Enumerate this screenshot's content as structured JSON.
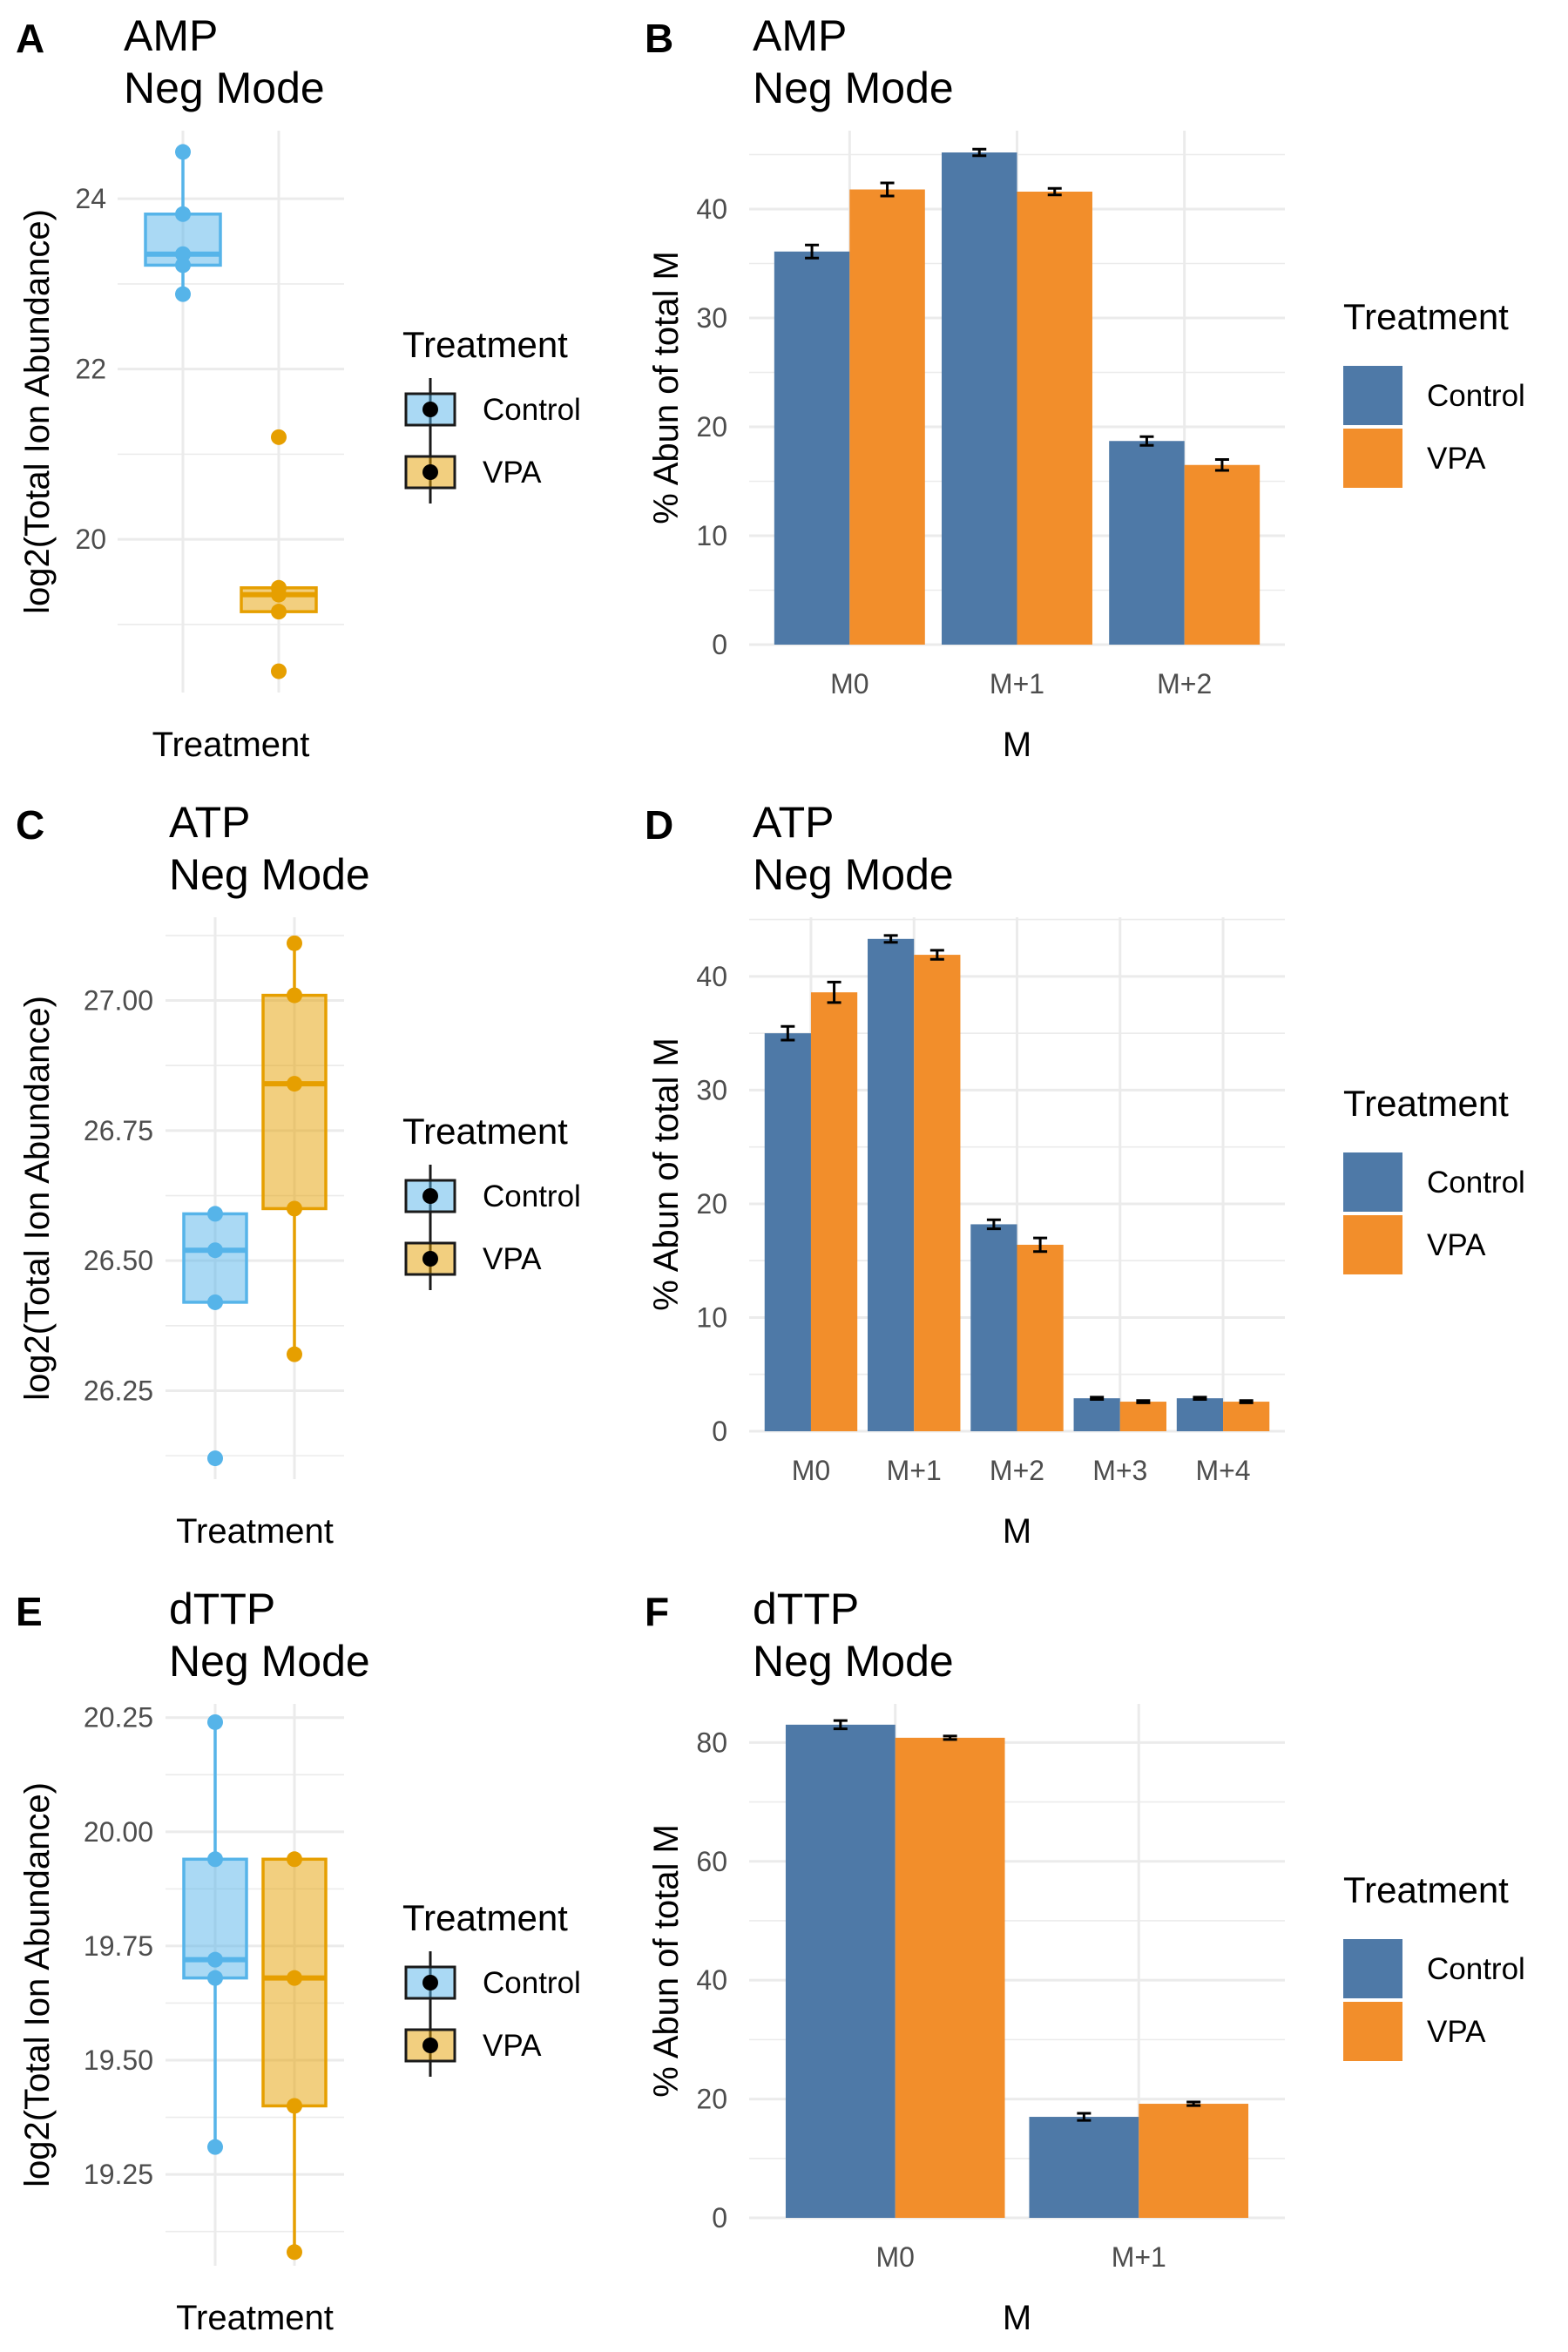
{
  "colors": {
    "box_control": "#56B4E9",
    "box_vpa": "#E69F00",
    "bar_control": "#4E79A7",
    "bar_vpa": "#F28E2B",
    "grid": "#EBEBEB"
  },
  "chart_data": [
    {
      "letter": "A",
      "type": "box",
      "title": "AMP",
      "subtitle": "Neg Mode",
      "xlabel": "Treatment",
      "ylabel": "log2(Total Ion Abundance)",
      "ylim": [
        18.2,
        24.8
      ],
      "yticks": [
        20,
        22,
        24
      ],
      "ytick_labels": [
        "20",
        "22",
        "24"
      ],
      "legend_title": "Treatment",
      "series": [
        {
          "name": "Control",
          "q1": 23.22,
          "median": 23.35,
          "q3": 23.82,
          "whisker_low": 22.88,
          "whisker_high": 24.55,
          "points": [
            24.55,
            23.82,
            23.35,
            23.22,
            22.88
          ],
          "outliers": []
        },
        {
          "name": "VPA",
          "q1": 19.15,
          "median": 19.35,
          "q3": 19.43,
          "whisker_low": 19.15,
          "whisker_high": 19.43,
          "points": [
            21.2,
            19.43,
            19.35,
            19.15,
            18.45
          ],
          "outliers": [
            21.2,
            18.45
          ]
        }
      ]
    },
    {
      "letter": "B",
      "type": "bar",
      "title": "AMP",
      "subtitle": "Neg Mode",
      "xlabel": "M",
      "ylabel": "% Abun of total M",
      "ylim": [
        0,
        47.2
      ],
      "yticks": [
        0,
        10,
        20,
        30,
        40
      ],
      "ytick_labels": [
        "0",
        "10",
        "20",
        "30",
        "40"
      ],
      "categories": [
        "M0",
        "M+1",
        "M+2"
      ],
      "legend_title": "Treatment",
      "series": [
        {
          "name": "Control",
          "values": [
            36.1,
            45.2,
            18.7
          ],
          "errors": [
            0.6,
            0.3,
            0.4
          ]
        },
        {
          "name": "VPA",
          "values": [
            41.8,
            41.6,
            16.5
          ],
          "errors": [
            0.6,
            0.3,
            0.5
          ]
        }
      ]
    },
    {
      "letter": "C",
      "type": "box",
      "title": "ATP",
      "subtitle": "Neg Mode",
      "xlabel": "Treatment",
      "ylabel": "log2(Total Ion Abundance)",
      "ylim": [
        26.08,
        27.16
      ],
      "yticks": [
        26.25,
        26.5,
        26.75,
        27.0
      ],
      "ytick_labels": [
        "26.25",
        "26.50",
        "26.75",
        "27.00"
      ],
      "legend_title": "Treatment",
      "series": [
        {
          "name": "Control",
          "q1": 26.42,
          "median": 26.52,
          "q3": 26.59,
          "whisker_low": 26.42,
          "whisker_high": 26.59,
          "points": [
            26.59,
            26.52,
            26.42,
            26.12
          ],
          "outliers": [
            26.12
          ]
        },
        {
          "name": "VPA",
          "q1": 26.6,
          "median": 26.84,
          "q3": 27.01,
          "whisker_low": 26.32,
          "whisker_high": 27.11,
          "points": [
            27.11,
            27.01,
            26.84,
            26.6,
            26.32
          ],
          "outliers": []
        }
      ]
    },
    {
      "letter": "D",
      "type": "bar",
      "title": "ATP",
      "subtitle": "Neg Mode",
      "xlabel": "M",
      "ylabel": "% Abun of total M",
      "ylim": [
        0,
        45.2
      ],
      "yticks": [
        0,
        10,
        20,
        30,
        40
      ],
      "ytick_labels": [
        "0",
        "10",
        "20",
        "30",
        "40"
      ],
      "categories": [
        "M0",
        "M+1",
        "M+2",
        "M+3",
        "M+4"
      ],
      "legend_title": "Treatment",
      "series": [
        {
          "name": "Control",
          "values": [
            35.0,
            43.3,
            18.2,
            2.9,
            2.9
          ],
          "errors": [
            0.6,
            0.3,
            0.4,
            0.1,
            0.1
          ]
        },
        {
          "name": "VPA",
          "values": [
            38.6,
            41.9,
            16.4,
            2.6,
            2.6
          ],
          "errors": [
            0.9,
            0.4,
            0.6,
            0.1,
            0.1
          ]
        }
      ]
    },
    {
      "letter": "E",
      "type": "box",
      "title": "dTTP",
      "subtitle": "Neg Mode",
      "xlabel": "Treatment",
      "ylabel": "log2(Total Ion Abundance)",
      "ylim": [
        19.05,
        20.28
      ],
      "yticks": [
        19.25,
        19.5,
        19.75,
        20.0,
        20.25
      ],
      "ytick_labels": [
        "19.25",
        "19.50",
        "19.75",
        "20.00",
        "20.25"
      ],
      "legend_title": "Treatment",
      "series": [
        {
          "name": "Control",
          "q1": 19.68,
          "median": 19.72,
          "q3": 19.94,
          "whisker_low": 19.31,
          "whisker_high": 20.24,
          "points": [
            20.24,
            19.94,
            19.72,
            19.68,
            19.31
          ],
          "outliers": []
        },
        {
          "name": "VPA",
          "q1": 19.4,
          "median": 19.68,
          "q3": 19.94,
          "whisker_low": 19.08,
          "whisker_high": 19.94,
          "points": [
            19.94,
            19.68,
            19.4,
            19.08
          ],
          "outliers": []
        }
      ]
    },
    {
      "letter": "F",
      "type": "bar",
      "title": "dTTP",
      "subtitle": "Neg Mode",
      "xlabel": "M",
      "ylabel": "% Abun of total M",
      "ylim": [
        0,
        86.5
      ],
      "yticks": [
        0,
        20,
        40,
        60,
        80
      ],
      "ytick_labels": [
        "0",
        "20",
        "40",
        "60",
        "80"
      ],
      "categories": [
        "M0",
        "M+1"
      ],
      "legend_title": "Treatment",
      "series": [
        {
          "name": "Control",
          "values": [
            83.0,
            17.0
          ],
          "errors": [
            0.7,
            0.6
          ]
        },
        {
          "name": "VPA",
          "values": [
            80.8,
            19.2
          ],
          "errors": [
            0.3,
            0.3
          ]
        }
      ]
    }
  ]
}
